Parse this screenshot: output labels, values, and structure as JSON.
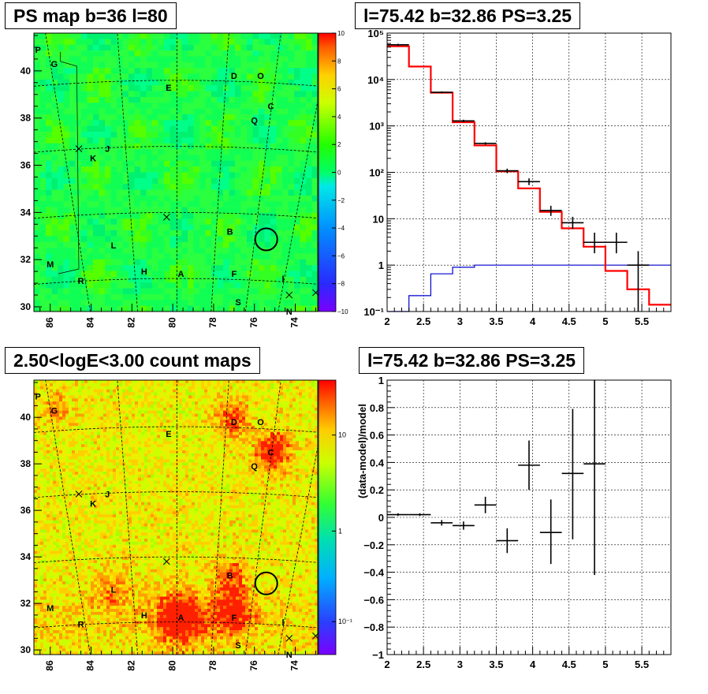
{
  "panels": {
    "tl_title": "PS map b=36 l=80",
    "tr_title": "l=75.42 b=32.86 PS=3.25",
    "bl_title": "2.50<logE<3.00 count maps",
    "br_title": "l=75.42 b=32.86 PS=3.25"
  },
  "colors": {
    "data": "#000000",
    "model": "#ff0000",
    "background": "#0000cc"
  },
  "chart_data": [
    {
      "type": "heatmap",
      "panel": "ps-map",
      "title": "PS map b=36 l=80",
      "xlim": [
        86.8,
        72.9
      ],
      "ylim": [
        29.8,
        41.6
      ],
      "x_ticks": [
        "86",
        "84",
        "82",
        "80",
        "78",
        "76",
        "74"
      ],
      "y_ticks": [
        "30",
        "32",
        "34",
        "36",
        "38",
        "40"
      ],
      "colorbar": {
        "min": -10,
        "max": 10,
        "ticks": [
          "10",
          "8",
          "6",
          "4",
          "2",
          "0",
          "−2",
          "−4",
          "−6",
          "−8",
          "−10"
        ]
      },
      "sources": [
        {
          "label": "P",
          "l": 86.6,
          "b": 40.9
        },
        {
          "label": "G",
          "l": 85.8,
          "b": 40.3
        },
        {
          "label": "E",
          "l": 80.2,
          "b": 39.3
        },
        {
          "label": "D",
          "l": 77.0,
          "b": 39.8
        },
        {
          "label": "O",
          "l": 75.7,
          "b": 39.8
        },
        {
          "label": "C",
          "l": 75.2,
          "b": 38.5
        },
        {
          "label": "Q",
          "l": 76.0,
          "b": 37.9
        },
        {
          "label": "J",
          "l": 83.2,
          "b": 36.7
        },
        {
          "label": "K",
          "l": 83.9,
          "b": 36.3
        },
        {
          "label": "B",
          "l": 77.2,
          "b": 33.2
        },
        {
          "label": "L",
          "l": 82.9,
          "b": 32.6
        },
        {
          "label": "M",
          "l": 86.0,
          "b": 31.8
        },
        {
          "label": "H",
          "l": 81.4,
          "b": 31.5
        },
        {
          "label": "A",
          "l": 79.6,
          "b": 31.4
        },
        {
          "label": "F",
          "l": 77.0,
          "b": 31.4
        },
        {
          "label": "R",
          "l": 84.5,
          "b": 31.1
        },
        {
          "label": "I",
          "l": 74.6,
          "b": 31.2
        },
        {
          "label": "S",
          "l": 76.8,
          "b": 30.2
        },
        {
          "label": "N",
          "l": 74.3,
          "b": 29.8
        }
      ],
      "markers_x": [
        {
          "l": 84.6,
          "b": 36.7
        },
        {
          "l": 80.3,
          "b": 33.8
        },
        {
          "l": 74.3,
          "b": 30.5
        },
        {
          "l": 73.0,
          "b": 30.6
        }
      ],
      "circle": {
        "l": 75.42,
        "b": 32.86
      }
    },
    {
      "type": "line",
      "panel": "spectrum",
      "title": "l=75.42 b=32.86 PS=3.25",
      "xlim": [
        2,
        5.9
      ],
      "ylim": [
        0.1,
        100000
      ],
      "yscale": "log",
      "x_ticks": [
        "2",
        "2.5",
        "3",
        "3.5",
        "4",
        "4.5",
        "5",
        "5.5"
      ],
      "y_ticks": [
        "10⁻¹",
        "1",
        "10",
        "10²",
        "10³",
        "10⁴",
        "10⁵"
      ],
      "grid": true,
      "bin_edges": [
        2,
        2.3,
        2.6,
        2.9,
        3.2,
        3.5,
        3.8,
        4.1,
        4.4,
        4.7,
        5.0,
        5.3,
        5.6,
        5.9
      ],
      "series": [
        {
          "values": [
            52000,
            19000,
            5200,
            1200,
            380,
            105,
            45,
            14,
            6.2,
            2.5,
            0.75,
            0.3,
            0.14
          ]
        },
        {
          "values": [
            0.0,
            0.22,
            0.65,
            0.9,
            1.0,
            1.0,
            1.0,
            1.0,
            1.0,
            1.0,
            1.0,
            1.0,
            1.0
          ]
        }
      ],
      "points": [
        {
          "x": 2.15,
          "y": 56000,
          "ylo": 53000,
          "yhi": 59000
        },
        {
          "x": 2.75,
          "y": 5300,
          "ylo": 5050,
          "yhi": 5550
        },
        {
          "x": 3.05,
          "y": 1280,
          "ylo": 1200,
          "yhi": 1360
        },
        {
          "x": 3.35,
          "y": 420,
          "ylo": 395,
          "yhi": 445
        },
        {
          "x": 3.65,
          "y": 108,
          "ylo": 96,
          "yhi": 120
        },
        {
          "x": 3.95,
          "y": 63,
          "ylo": 53,
          "yhi": 74
        },
        {
          "x": 4.25,
          "y": 15,
          "ylo": 11.5,
          "yhi": 19
        },
        {
          "x": 4.55,
          "y": 8.2,
          "ylo": 6,
          "yhi": 11
        },
        {
          "x": 4.85,
          "y": 3.1,
          "ylo": 1.8,
          "yhi": 5
        },
        {
          "x": 5.15,
          "y": 3.1,
          "ylo": 1.8,
          "yhi": 5
        },
        {
          "x": 5.45,
          "y": 1.0,
          "ylo": 0.1,
          "yhi": 2.0
        }
      ]
    },
    {
      "type": "heatmap",
      "panel": "count-map",
      "title": "2.50<logE<3.00 count maps",
      "xlim": [
        86.8,
        72.9
      ],
      "ylim": [
        29.8,
        41.6
      ],
      "x_ticks": [
        "86",
        "84",
        "82",
        "80",
        "78",
        "76",
        "74"
      ],
      "y_ticks": [
        "30",
        "32",
        "34",
        "36",
        "38",
        "40"
      ],
      "colorbar": {
        "scale": "log",
        "ticks": [
          "10",
          "1",
          "10⁻¹"
        ]
      },
      "hotspots": [
        {
          "l": 79.6,
          "b": 31.4,
          "amp": 0.9,
          "s": 0.8
        },
        {
          "l": 77.1,
          "b": 31.6,
          "amp": 0.7,
          "s": 0.7
        },
        {
          "l": 75.1,
          "b": 38.5,
          "amp": 0.8,
          "s": 0.6
        },
        {
          "l": 77.1,
          "b": 39.9,
          "amp": 0.6,
          "s": 0.55
        },
        {
          "l": 77.2,
          "b": 33.2,
          "amp": 0.5,
          "s": 0.55
        },
        {
          "l": 85.7,
          "b": 40.4,
          "amp": 0.35,
          "s": 0.5
        },
        {
          "l": 82.9,
          "b": 32.6,
          "amp": 0.35,
          "s": 0.7
        }
      ]
    },
    {
      "type": "scatter",
      "panel": "residuals",
      "title": "l=75.42 b=32.86 PS=3.25",
      "xlim": [
        2,
        5.9
      ],
      "ylim": [
        -1,
        1
      ],
      "x_ticks": [
        "2",
        "2.5",
        "3",
        "3.5",
        "4",
        "4.5",
        "5",
        "5.5"
      ],
      "y_ticks": [
        "−1",
        "−0.8",
        "−0.6",
        "−0.4",
        "−0.2",
        "0",
        "0.2",
        "0.4",
        "0.6",
        "0.8",
        "1"
      ],
      "ylabel": "(data-model)/model",
      "grid": true,
      "points": [
        {
          "x": 2.15,
          "y": 0.02,
          "xerr": 0.15,
          "ylo": 0.01,
          "yhi": 0.03
        },
        {
          "x": 2.45,
          "y": 0.02,
          "xerr": 0.15,
          "ylo": 0.01,
          "yhi": 0.03
        },
        {
          "x": 2.75,
          "y": -0.04,
          "xerr": 0.15,
          "ylo": -0.06,
          "yhi": -0.02
        },
        {
          "x": 3.05,
          "y": -0.06,
          "xerr": 0.15,
          "ylo": -0.09,
          "yhi": -0.03
        },
        {
          "x": 3.35,
          "y": 0.09,
          "xerr": 0.15,
          "ylo": 0.03,
          "yhi": 0.15
        },
        {
          "x": 3.65,
          "y": -0.17,
          "xerr": 0.15,
          "ylo": -0.26,
          "yhi": -0.08
        },
        {
          "x": 3.95,
          "y": 0.38,
          "xerr": 0.15,
          "ylo": 0.2,
          "yhi": 0.56
        },
        {
          "x": 4.25,
          "y": -0.11,
          "xerr": 0.15,
          "ylo": -0.34,
          "yhi": 0.13
        },
        {
          "x": 4.55,
          "y": 0.32,
          "xerr": 0.15,
          "ylo": -0.16,
          "yhi": 0.79
        },
        {
          "x": 4.85,
          "y": 0.39,
          "xerr": 0.15,
          "ylo": -0.42,
          "yhi": 1.0
        }
      ]
    }
  ]
}
